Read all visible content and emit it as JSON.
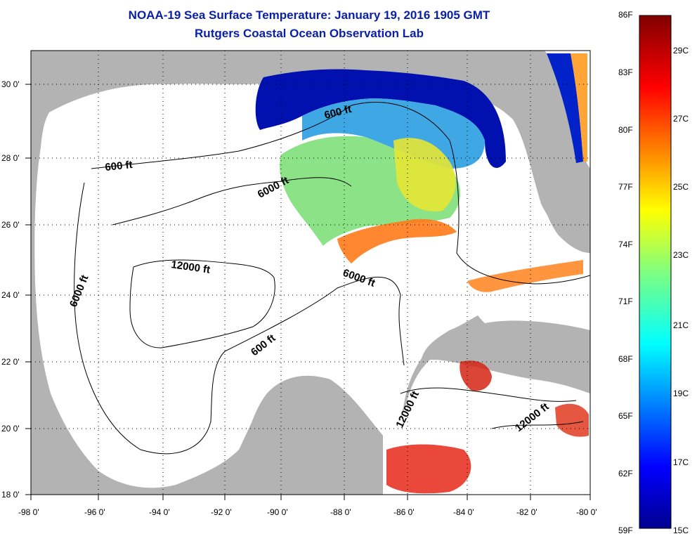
{
  "title": {
    "line1": "NOAA-19 Sea Surface Temperature:  January 19, 2016 1905 GMT",
    "line2": "Rutgers Coastal Ocean Observation Lab"
  },
  "axes": {
    "lon_labels": [
      "-98 0'",
      "-96 0'",
      "-94 0'",
      "-92 0'",
      "-90 0'",
      "-88 0'",
      "-86 0'",
      "-84 0'",
      "-82 0'",
      "-80 0'"
    ],
    "lat_labels": [
      "30 0'",
      "28 0'",
      "26 0'",
      "24 0'",
      "22 0'",
      "20 0'",
      "18 0'"
    ],
    "lon_range": [
      -98,
      -80
    ],
    "lat_range": [
      18,
      31
    ]
  },
  "contour_labels": [
    {
      "text": "600 ft"
    },
    {
      "text": "600 ft"
    },
    {
      "text": "6000 ft"
    },
    {
      "text": "12000 ft"
    },
    {
      "text": "6000 ft"
    },
    {
      "text": "6000 ft"
    },
    {
      "text": "600 ft"
    },
    {
      "text": "12000 ft"
    },
    {
      "text": "12000 ft"
    }
  ],
  "colorbar": {
    "fahrenheit_labels": [
      "86F",
      "83F",
      "80F",
      "77F",
      "74F",
      "71F",
      "68F",
      "65F",
      "62F",
      "59F"
    ],
    "celsius_labels": [
      "29C",
      "27C",
      "25C",
      "23C",
      "21C",
      "19C",
      "17C",
      "15C"
    ],
    "range_f": [
      59,
      86
    ],
    "range_c": [
      15,
      30
    ]
  },
  "colors": {
    "title": "#0a1fa8",
    "land": "#b3b3b3",
    "ocean_no_data": "#ffffff",
    "cold": "#00008f",
    "warm": "#c00000"
  }
}
